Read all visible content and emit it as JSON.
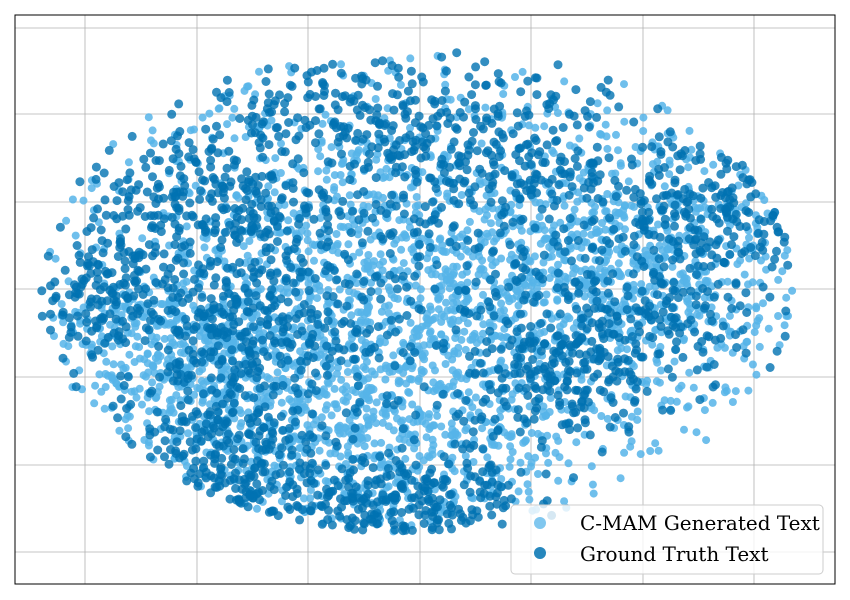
{
  "chart_data": {
    "type": "scatter",
    "title": "",
    "xlabel": "",
    "ylabel": "",
    "xlim": [
      0,
      100
    ],
    "ylim": [
      0,
      100
    ],
    "grid": true,
    "tick_labels_visible": false,
    "legend_position": "bottom-right",
    "series": [
      {
        "name": "C-MAM Generated Text",
        "color": "#56B4E9",
        "point_count_estimate": 9000,
        "description_of_distribution": "dense blob filling the interior",
        "blobs": [
          {
            "center": [
              50,
              52
            ],
            "spread": [
              22,
              18
            ],
            "weight": 0.55
          },
          {
            "center": [
              22,
              40
            ],
            "spread": [
              10,
              8
            ],
            "weight": 0.15
          },
          {
            "center": [
              75,
              55
            ],
            "spread": [
              12,
              10
            ],
            "weight": 0.15
          },
          {
            "center": [
              44,
              25
            ],
            "spread": [
              12,
              9
            ],
            "weight": 0.15
          }
        ]
      },
      {
        "name": "Ground Truth Text",
        "color": "#0072B2",
        "point_count_estimate": 6000,
        "blobs": [
          {
            "center": [
              10,
              50
            ],
            "spread": [
              5,
              6
            ],
            "weight": 0.06
          },
          {
            "center": [
              24,
              67
            ],
            "spread": [
              8,
              7
            ],
            "weight": 0.1
          },
          {
            "center": [
              27,
              44
            ],
            "spread": [
              7,
              7
            ],
            "weight": 0.09
          },
          {
            "center": [
              24,
              23
            ],
            "spread": [
              7,
              6
            ],
            "weight": 0.08
          },
          {
            "center": [
              34,
              13
            ],
            "spread": [
              8,
              5
            ],
            "weight": 0.09
          },
          {
            "center": [
              50,
              15
            ],
            "spread": [
              6,
              5
            ],
            "weight": 0.07
          },
          {
            "center": [
              66,
              35
            ],
            "spread": [
              6,
              6
            ],
            "weight": 0.07
          },
          {
            "center": [
              59,
              73
            ],
            "spread": [
              10,
              8
            ],
            "weight": 0.09
          },
          {
            "center": [
              84,
              65
            ],
            "spread": [
              8,
              8
            ],
            "weight": 0.1
          },
          {
            "center": [
              76,
              45
            ],
            "spread": [
              7,
              6
            ],
            "weight": 0.07
          },
          {
            "center": [
              45,
              82
            ],
            "spread": [
              12,
              5
            ],
            "weight": 0.09
          },
          {
            "center": [
              42,
              50
            ],
            "spread": [
              14,
              12
            ],
            "weight": 0.09
          }
        ]
      }
    ]
  }
}
